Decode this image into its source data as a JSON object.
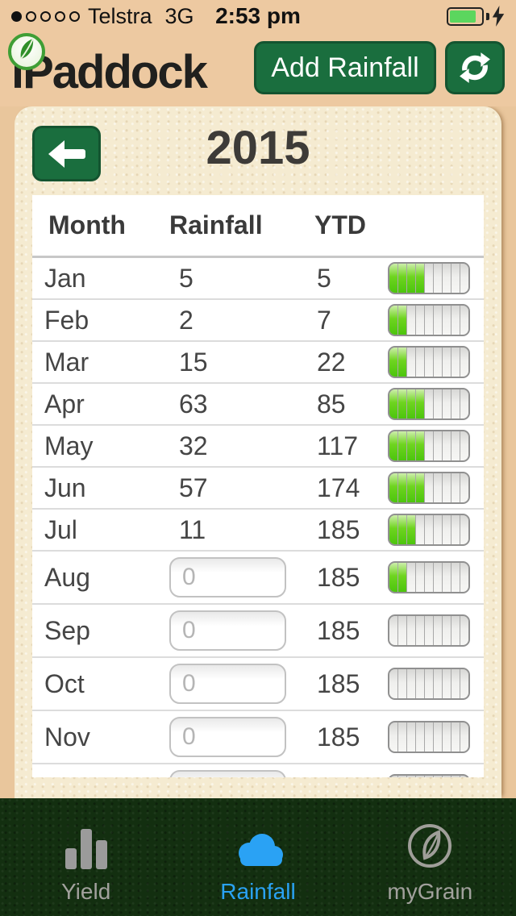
{
  "status_bar": {
    "signal_dots_filled": 1,
    "signal_dots_total": 5,
    "carrier": "Telstra",
    "network": "3G",
    "time": "2:53 pm",
    "battery": {
      "level_percent": 85,
      "charging": true
    }
  },
  "header": {
    "logo_text": "iPaddock",
    "add_button_label": "Add Rainfall",
    "refresh_icon": "refresh-arrows-icon"
  },
  "year_screen": {
    "back_icon": "left-arrow-icon",
    "year_title": "2015"
  },
  "table": {
    "headers": [
      "Month",
      "Rainfall",
      "YTD"
    ],
    "input_placeholder": "0",
    "bars_total": 9,
    "rows": [
      {
        "month": "Jan",
        "rainfall": "5",
        "ytd": "5",
        "has_input": false,
        "bars_filled": 4
      },
      {
        "month": "Feb",
        "rainfall": "2",
        "ytd": "7",
        "has_input": false,
        "bars_filled": 2
      },
      {
        "month": "Mar",
        "rainfall": "15",
        "ytd": "22",
        "has_input": false,
        "bars_filled": 2
      },
      {
        "month": "Apr",
        "rainfall": "63",
        "ytd": "85",
        "has_input": false,
        "bars_filled": 4
      },
      {
        "month": "May",
        "rainfall": "32",
        "ytd": "117",
        "has_input": false,
        "bars_filled": 4
      },
      {
        "month": "Jun",
        "rainfall": "57",
        "ytd": "174",
        "has_input": false,
        "bars_filled": 4
      },
      {
        "month": "Jul",
        "rainfall": "11",
        "ytd": "185",
        "has_input": false,
        "bars_filled": 3
      },
      {
        "month": "Aug",
        "rainfall": null,
        "ytd": "185",
        "has_input": true,
        "bars_filled": 2
      },
      {
        "month": "Sep",
        "rainfall": null,
        "ytd": "185",
        "has_input": true,
        "bars_filled": 0
      },
      {
        "month": "Oct",
        "rainfall": null,
        "ytd": "185",
        "has_input": true,
        "bars_filled": 0
      },
      {
        "month": "Nov",
        "rainfall": null,
        "ytd": "185",
        "has_input": true,
        "bars_filled": 0
      },
      {
        "month": "",
        "rainfall": null,
        "ytd": "",
        "has_input": true,
        "bars_filled": 0
      }
    ]
  },
  "tab_bar": {
    "items": [
      {
        "label": "Yield",
        "icon": "bar-chart-icon",
        "active": false
      },
      {
        "label": "Rainfall",
        "icon": "cloud-icon",
        "active": true
      },
      {
        "label": "myGrain",
        "icon": "leaf-circle-icon",
        "active": false
      }
    ],
    "active_color": "#2aa2f4",
    "inactive_color": "#a2a19d"
  },
  "colors": {
    "header_background": "#edc9a1",
    "card_background": "#f5ebd1",
    "button_green": "#1a6e3e",
    "bar_green": "#4cc50d",
    "tab_bar_background": "#132f10",
    "battery_green": "#5bd65e"
  }
}
